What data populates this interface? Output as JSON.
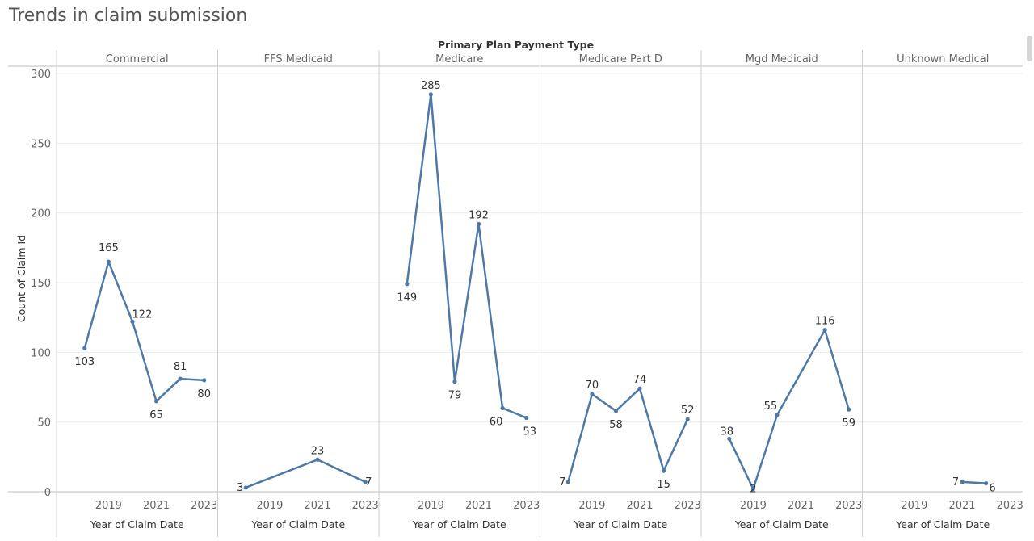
{
  "page": {
    "title": "Trends in claim submission"
  },
  "chart_data": {
    "type": "line",
    "title": "Trends in claim submission",
    "column_title": "Primary Plan Payment Type",
    "ylabel": "Count of Claim Id",
    "xlabel": "Year of Claim Date",
    "ylim": [
      0,
      300
    ],
    "yticks": [
      0,
      50,
      100,
      150,
      200,
      250,
      300
    ],
    "xlim": [
      2017.5,
      2023.5
    ],
    "xticks": [
      2019,
      2021,
      2023
    ],
    "grid": true,
    "series_color": "#4e79a7",
    "panels": [
      {
        "name": "Commercial",
        "points": [
          {
            "x": 2018,
            "y": 103
          },
          {
            "x": 2019,
            "y": 165
          },
          {
            "x": 2020,
            "y": 122
          },
          {
            "x": 2021,
            "y": 65
          },
          {
            "x": 2022,
            "y": 81
          },
          {
            "x": 2023,
            "y": 80
          }
        ]
      },
      {
        "name": "FFS Medicaid",
        "points": [
          {
            "x": 2018,
            "y": 3
          },
          {
            "x": 2021,
            "y": 23
          },
          {
            "x": 2023,
            "y": 7
          }
        ]
      },
      {
        "name": "Medicare",
        "points": [
          {
            "x": 2018,
            "y": 149
          },
          {
            "x": 2019,
            "y": 285
          },
          {
            "x": 2020,
            "y": 79
          },
          {
            "x": 2021,
            "y": 192
          },
          {
            "x": 2022,
            "y": 60
          },
          {
            "x": 2023,
            "y": 53
          }
        ]
      },
      {
        "name": "Medicare Part D",
        "points": [
          {
            "x": 2018,
            "y": 7
          },
          {
            "x": 2019,
            "y": 70
          },
          {
            "x": 2020,
            "y": 58
          },
          {
            "x": 2021,
            "y": 74
          },
          {
            "x": 2022,
            "y": 15
          },
          {
            "x": 2023,
            "y": 52
          }
        ]
      },
      {
        "name": "Mgd Medicaid",
        "points": [
          {
            "x": 2018,
            "y": 38
          },
          {
            "x": 2019,
            "y": 2
          },
          {
            "x": 2020,
            "y": 55
          },
          {
            "x": 2022,
            "y": 116
          },
          {
            "x": 2023,
            "y": 59
          }
        ]
      },
      {
        "name": "Unknown Medical",
        "points": [
          {
            "x": 2021,
            "y": 7
          },
          {
            "x": 2022,
            "y": 6
          }
        ]
      }
    ]
  }
}
